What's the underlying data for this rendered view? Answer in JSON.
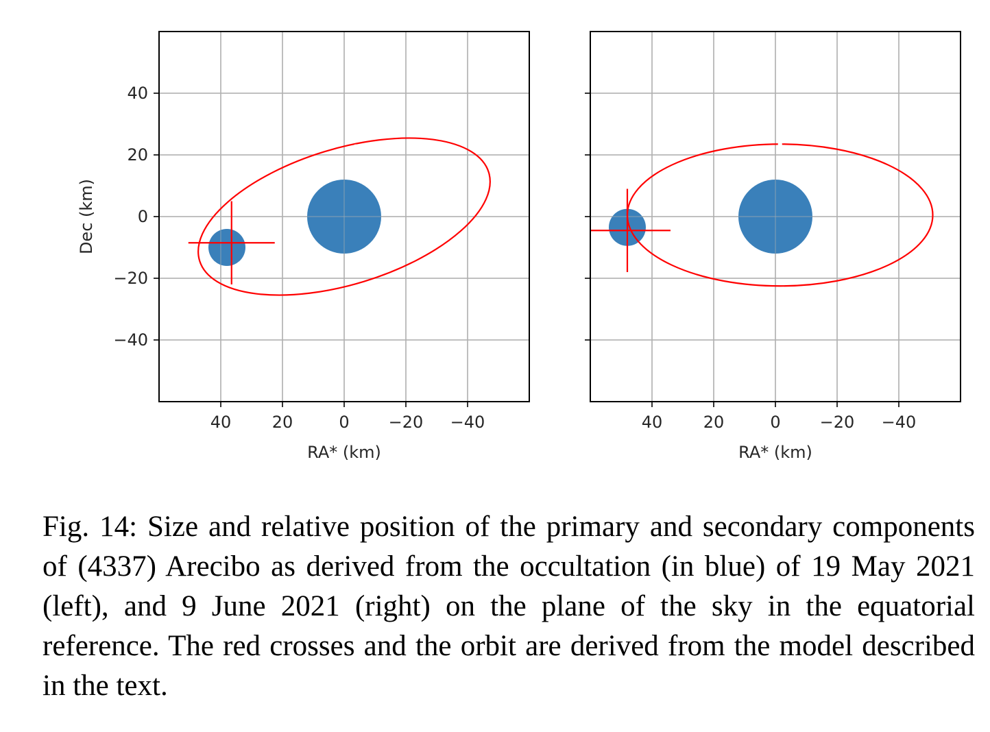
{
  "chart_data": [
    {
      "type": "scatter",
      "panel": "left",
      "xlabel": "RA* (km)",
      "ylabel": "Dec (km)",
      "xlim": [
        60,
        -60
      ],
      "ylim": [
        -60,
        60
      ],
      "x_axis_inverted": true,
      "xticks": [
        40,
        20,
        0,
        -20,
        -40
      ],
      "xtick_labels": [
        "40",
        "20",
        "0",
        "−20",
        "−40"
      ],
      "yticks": [
        40,
        20,
        0,
        -20,
        -40
      ],
      "ytick_labels": [
        "40",
        "20",
        "0",
        "−20",
        "−40"
      ],
      "show_yticklabels": true,
      "grid": true,
      "primary": {
        "x": 0,
        "y": 0,
        "radius": 12,
        "color": "#3a80ba"
      },
      "secondary": {
        "x": 38,
        "y": -10,
        "radius": 6,
        "color": "#3a80ba"
      },
      "cross": {
        "x": 36.5,
        "y": -8.5,
        "half_width": 14,
        "half_height": 13.5,
        "color": "#ff0000"
      },
      "orbit": {
        "cx": 0,
        "cy": 0,
        "rx": 49,
        "ry": 22,
        "rotation_deg": -17,
        "color": "#ff0000",
        "gap_at_top": true
      }
    },
    {
      "type": "scatter",
      "panel": "right",
      "xlabel": "RA* (km)",
      "ylabel": "",
      "xlim": [
        60,
        -60
      ],
      "ylim": [
        -60,
        60
      ],
      "x_axis_inverted": true,
      "xticks": [
        40,
        20,
        0,
        -20,
        -40
      ],
      "xtick_labels": [
        "40",
        "20",
        "0",
        "−20",
        "−40"
      ],
      "yticks": [
        40,
        20,
        0,
        -20,
        -40
      ],
      "ytick_labels": [],
      "show_yticklabels": false,
      "grid": true,
      "primary": {
        "x": 0,
        "y": 0,
        "radius": 12,
        "color": "#3a80ba"
      },
      "secondary": {
        "x": 48,
        "y": -3.5,
        "radius": 6,
        "color": "#3a80ba"
      },
      "cross": {
        "x": 48,
        "y": -4.5,
        "half_width": 14,
        "half_height": 13.5,
        "color": "#ff0000"
      },
      "orbit": {
        "cx": -1.5,
        "cy": 0.5,
        "rx": 49.5,
        "ry": 23,
        "rotation_deg": 0,
        "color": "#ff0000",
        "gap_at_top": true
      }
    }
  ],
  "caption": "Fig. 14: Size and relative position of the primary and secondary components of (4337) Arecibo as derived from the occultation (in blue) of 19 May 2021 (left), and 9 June 2021 (right) on the plane of the sky in the equatorial reference. The red crosses and the orbit are derived from the model described in the text."
}
